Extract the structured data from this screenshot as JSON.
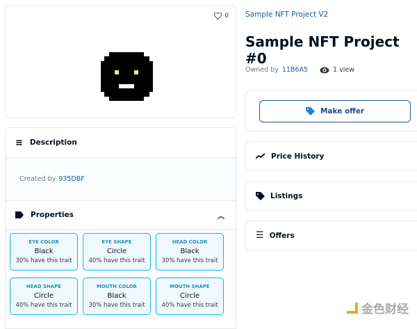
{
  "item_image": {
    "favorite_count": "0",
    "icon": "heart-icon"
  },
  "description": {
    "title": "Description",
    "created_by_label": "Created by",
    "creator": "935DBF"
  },
  "properties": {
    "title": "Properties",
    "traits": [
      {
        "type": "EYE COLOR",
        "value": "Black",
        "rarity": "30% have this trait"
      },
      {
        "type": "EYE SHAPE",
        "value": "Circle",
        "rarity": "40% have this trait"
      },
      {
        "type": "HEAD COLOR",
        "value": "Black",
        "rarity": "30% have this trait"
      },
      {
        "type": "HEAD SHAPE",
        "value": "Circle",
        "rarity": "40% have this trait"
      },
      {
        "type": "MOUTH COLOR",
        "value": "Black",
        "rarity": "30% have this trait"
      },
      {
        "type": "MOUTH SHAPE",
        "value": "Circle",
        "rarity": "40% have this trait"
      }
    ]
  },
  "header": {
    "collection": "Sample NFT Project V2",
    "title": "Sample NFT Project #0",
    "owned_by_label": "Owned by",
    "owner": "11B6A5",
    "views": "1 view"
  },
  "actions": {
    "make_offer": "Make offer"
  },
  "panels": {
    "price_history": "Price History",
    "listings": "Listings",
    "offers": "Offers"
  },
  "watermark": "金色财经",
  "colors": {
    "accent": "#1a5a9a",
    "trait_border": "#15b2e5",
    "trait_bg": "#eef8fd"
  }
}
